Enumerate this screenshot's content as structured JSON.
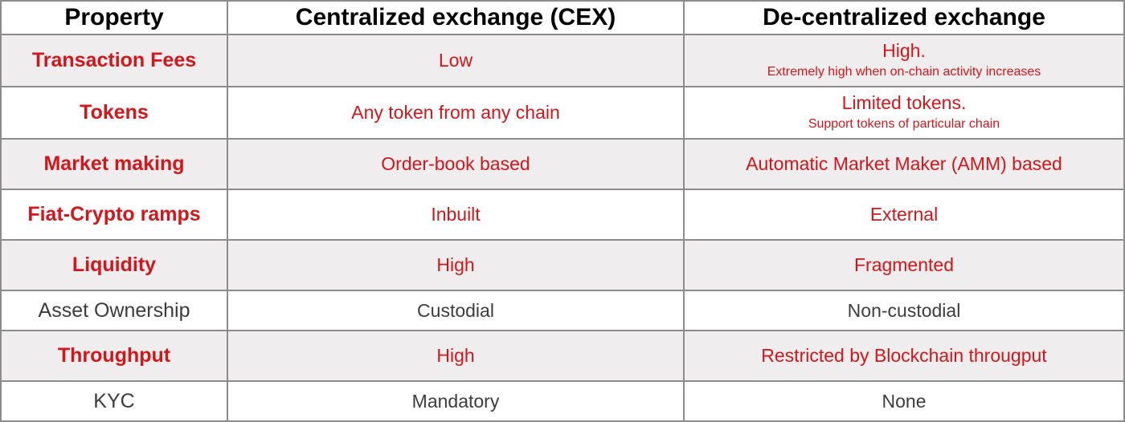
{
  "header": {
    "property": "Property",
    "cex": "Centralized exchange (CEX)",
    "dex": "De-centralized exchange"
  },
  "rows": [
    {
      "property": "Transaction Fees",
      "cex": "Low",
      "dex": "High.",
      "dex_sub": "Extremely high when on-chain activity increases"
    },
    {
      "property": "Tokens",
      "cex": "Any token from any chain",
      "dex": "Limited tokens.",
      "dex_sub": "Support tokens of particular chain"
    },
    {
      "property": "Market making",
      "cex": "Order-book based",
      "dex": "Automatic Market Maker (AMM) based"
    },
    {
      "property": "Fiat-Crypto ramps",
      "cex": "Inbuilt",
      "dex": "External"
    },
    {
      "property": "Liquidity",
      "cex": "High",
      "dex": "Fragmented"
    },
    {
      "property": "Asset Ownership",
      "cex": "Custodial",
      "dex": "Non-custodial"
    },
    {
      "property": "Throughput",
      "cex": "High",
      "dex": "Restricted by Blockchain througput"
    },
    {
      "property": "KYC",
      "cex": "Mandatory",
      "dex": "None"
    }
  ],
  "colors": {
    "highlight": "#d4161a",
    "plain_text": "#3c3c3c",
    "row_shade": "#efeded",
    "border": "#8c8c8c"
  }
}
